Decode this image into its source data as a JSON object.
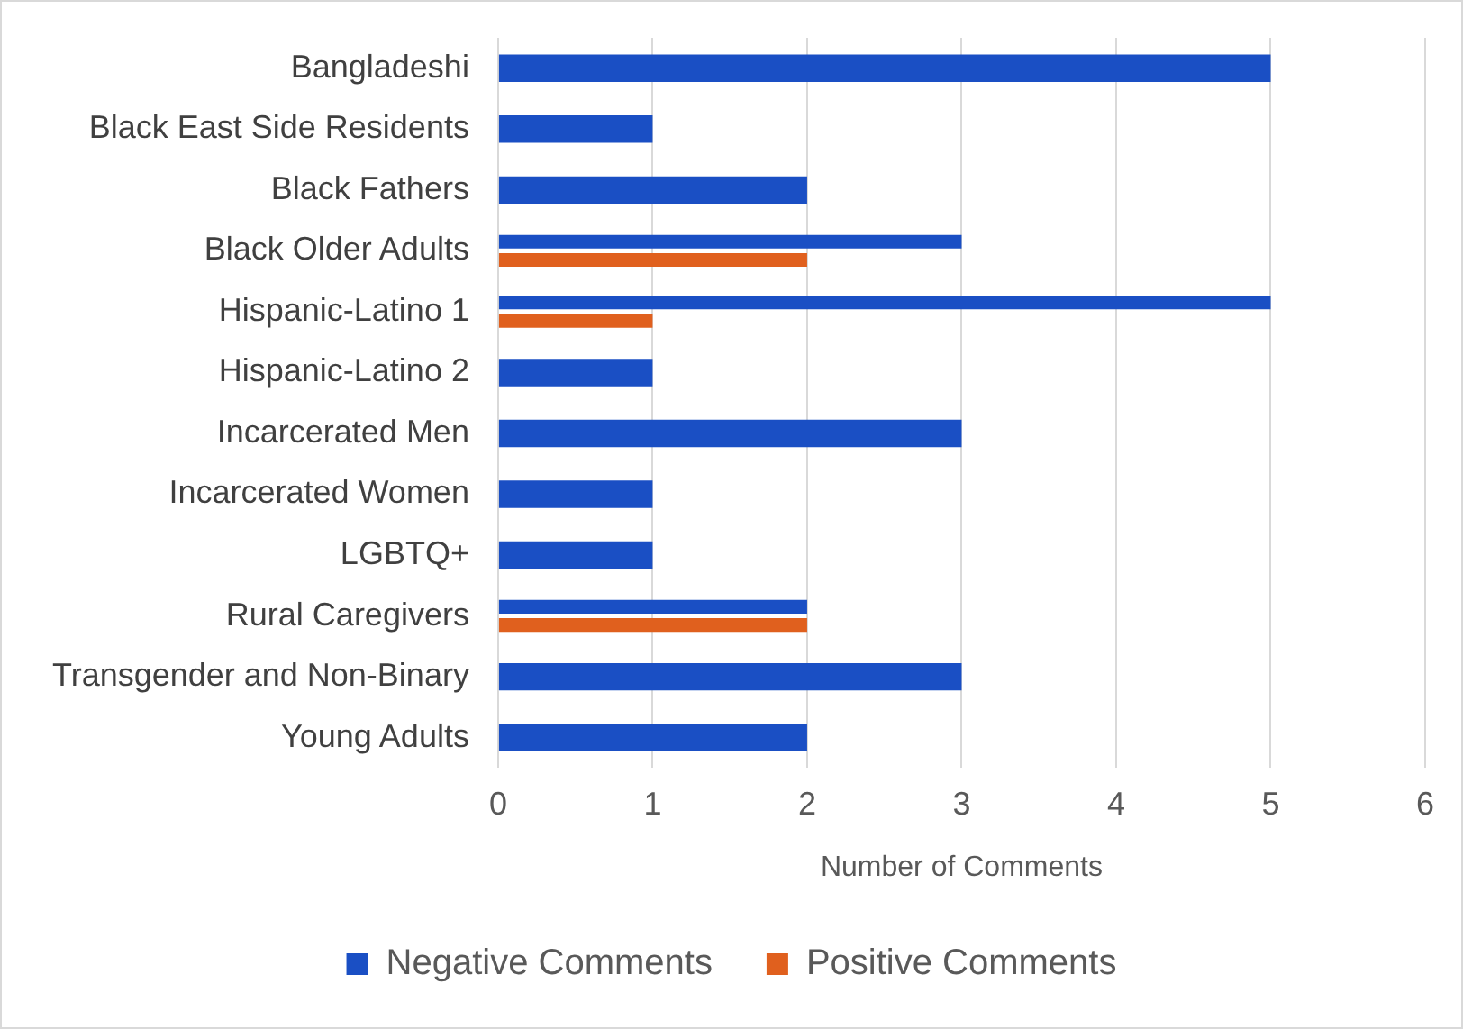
{
  "chart_data": {
    "type": "bar",
    "orientation": "horizontal",
    "xlabel": "Number of Comments",
    "categories": [
      "Bangladeshi",
      "Black East Side Residents",
      "Black Fathers",
      "Black Older Adults",
      "Hispanic-Latino 1",
      "Hispanic-Latino 2",
      "Incarcerated Men",
      "Incarcerated Women",
      "LGBTQ+",
      "Rural Caregivers",
      "Transgender and Non-Binary",
      "Young Adults"
    ],
    "series": [
      {
        "name": "Negative Comments",
        "color": "#1a4fc4",
        "values": [
          5,
          1,
          2,
          3,
          5,
          1,
          3,
          1,
          1,
          2,
          3,
          2
        ]
      },
      {
        "name": "Positive Comments",
        "color": "#e0601e",
        "values": [
          null,
          null,
          null,
          2,
          1,
          null,
          null,
          null,
          null,
          2,
          null,
          null
        ]
      }
    ],
    "xlim": [
      0,
      6
    ],
    "xticks": [
      0,
      1,
      2,
      3,
      4,
      5,
      6
    ],
    "grid": "x",
    "legend": "bottom"
  }
}
